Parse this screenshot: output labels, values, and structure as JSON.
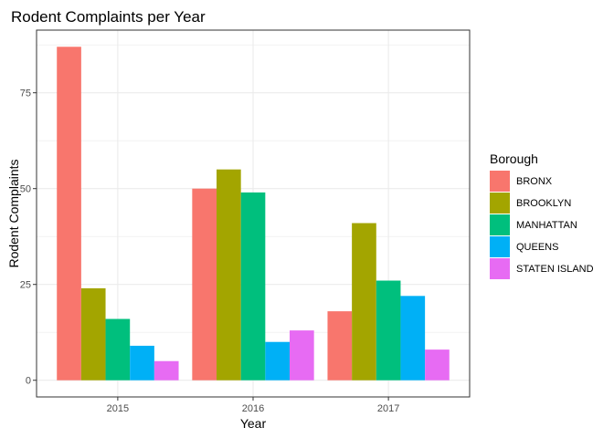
{
  "chart_data": {
    "type": "bar",
    "title": "Rodent Complaints per Year",
    "xlabel": "Year",
    "ylabel": "Rodent Complaints",
    "categories": [
      "2015",
      "2016",
      "2017"
    ],
    "ylim": [
      -4.35,
      91.35
    ],
    "yticks": [
      0,
      25,
      50,
      75
    ],
    "ytick_labels": [
      "0",
      "25",
      "50",
      "75"
    ],
    "grid": true,
    "legend": {
      "title": "Borough",
      "position": "right"
    },
    "series": [
      {
        "name": "BRONX",
        "color": "#F8766D",
        "values": [
          87,
          50,
          18
        ]
      },
      {
        "name": "BROOKLYN",
        "color": "#A3A500",
        "values": [
          24,
          55,
          41
        ]
      },
      {
        "name": "MANHATTAN",
        "color": "#00BF7D",
        "values": [
          16,
          49,
          26
        ]
      },
      {
        "name": "QUEENS",
        "color": "#00B0F6",
        "values": [
          9,
          10,
          22
        ]
      },
      {
        "name": "STATEN ISLAND",
        "color": "#E76BF3",
        "values": [
          5,
          13,
          8
        ]
      }
    ]
  }
}
